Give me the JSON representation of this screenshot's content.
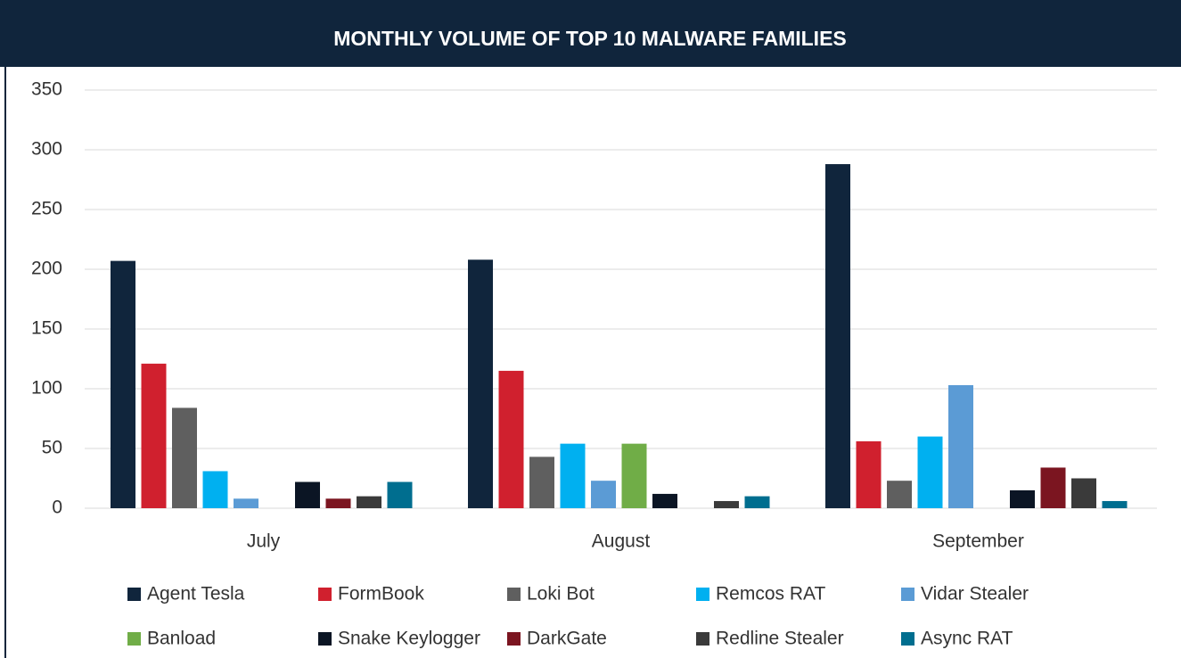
{
  "chart_data": {
    "type": "bar",
    "title": "MONTHLY VOLUME OF TOP 10 MALWARE FAMILIES",
    "categories": [
      "July",
      "August",
      "September"
    ],
    "series": [
      {
        "name": "Agent Tesla",
        "color": "#10253c",
        "values": [
          207,
          208,
          288
        ]
      },
      {
        "name": "FormBook",
        "color": "#d0202e",
        "values": [
          121,
          115,
          56
        ]
      },
      {
        "name": "Loki Bot",
        "color": "#5f5f5f",
        "values": [
          84,
          43,
          23
        ]
      },
      {
        "name": "Remcos RAT",
        "color": "#00b0f0",
        "values": [
          31,
          54,
          60
        ]
      },
      {
        "name": "Vidar Stealer",
        "color": "#5b9bd5",
        "values": [
          8,
          23,
          103
        ]
      },
      {
        "name": "Banload",
        "color": "#70ad47",
        "values": [
          0,
          54,
          0
        ]
      },
      {
        "name": "Snake Keylogger",
        "color": "#0b1524",
        "values": [
          22,
          12,
          15
        ]
      },
      {
        "name": "DarkGate",
        "color": "#7b1520",
        "values": [
          8,
          0,
          34
        ]
      },
      {
        "name": "Redline Stealer",
        "color": "#3a3a3a",
        "values": [
          10,
          6,
          25
        ]
      },
      {
        "name": "Async RAT",
        "color": "#006e8f",
        "values": [
          22,
          10,
          6
        ]
      }
    ],
    "ylim": [
      0,
      350
    ],
    "yticks": [
      0,
      50,
      100,
      150,
      200,
      250,
      300,
      350
    ],
    "grid": true
  }
}
